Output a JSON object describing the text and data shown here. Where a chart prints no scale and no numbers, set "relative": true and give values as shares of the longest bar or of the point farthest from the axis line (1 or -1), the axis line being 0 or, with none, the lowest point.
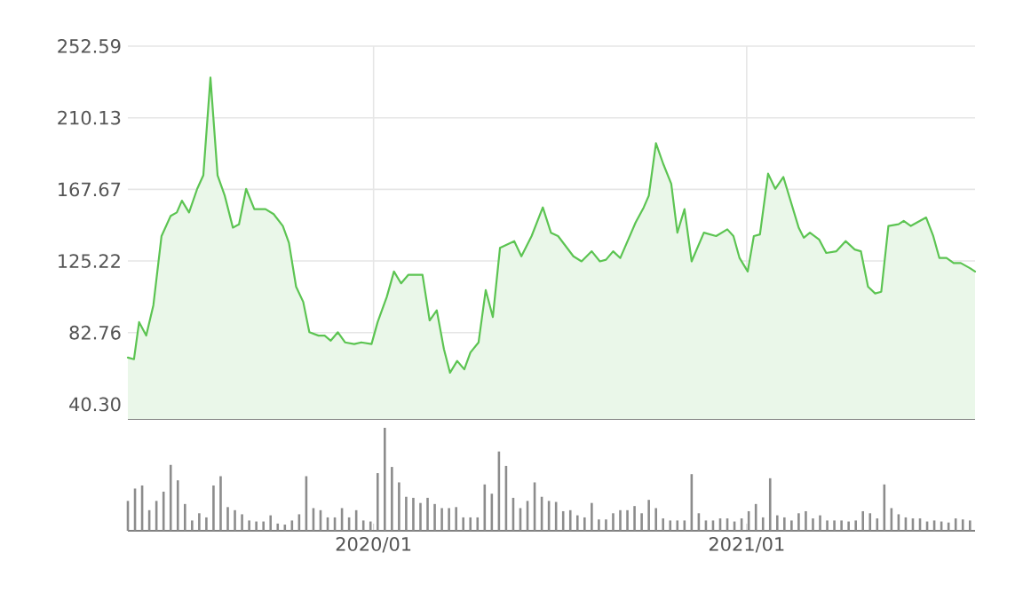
{
  "chart_data": [
    {
      "type": "area",
      "color": "#5cc452",
      "grid": true,
      "tick_labels": "y",
      "x": [
        "2019-05-05",
        "2019-05-11",
        "2019-05-16",
        "2019-05-23",
        "2019-05-30",
        "2019-06-07",
        "2019-06-16",
        "2019-06-22",
        "2019-06-27",
        "2019-07-04",
        "2019-07-12",
        "2019-07-18",
        "2019-07-25",
        "2019-08-01",
        "2019-08-08",
        "2019-08-16",
        "2019-08-22",
        "2019-08-29",
        "2019-09-06",
        "2019-09-17",
        "2019-09-25",
        "2019-10-04",
        "2019-10-10",
        "2019-10-17",
        "2019-10-24",
        "2019-10-30",
        "2019-11-08",
        "2019-11-14",
        "2019-11-20",
        "2019-11-27",
        "2019-12-04",
        "2019-12-13",
        "2019-12-20",
        "2019-12-30",
        "2020-01-05",
        "2020-01-14",
        "2020-01-21",
        "2020-01-28",
        "2020-02-04",
        "2020-02-18",
        "2020-02-25",
        "2020-03-03",
        "2020-03-10",
        "2020-03-16",
        "2020-03-23",
        "2020-03-30",
        "2020-04-05",
        "2020-04-13",
        "2020-04-20",
        "2020-04-27",
        "2020-05-04",
        "2020-05-18",
        "2020-05-25",
        "2020-06-04",
        "2020-06-15",
        "2020-06-23",
        "2020-06-30",
        "2020-07-15",
        "2020-07-23",
        "2020-08-02",
        "2020-08-10",
        "2020-08-16",
        "2020-08-23",
        "2020-08-30",
        "2020-09-14",
        "2020-09-22",
        "2020-09-27",
        "2020-10-04",
        "2020-10-11",
        "2020-10-19",
        "2020-10-25",
        "2020-11-01",
        "2020-11-08",
        "2020-11-20",
        "2020-12-02",
        "2020-12-13",
        "2020-12-19",
        "2020-12-25",
        "2021-01-02",
        "2021-01-08",
        "2021-01-14",
        "2021-01-22",
        "2021-01-29",
        "2021-02-06",
        "2021-02-21",
        "2021-02-26",
        "2021-03-04",
        "2021-03-13",
        "2021-03-20",
        "2021-03-30",
        "2021-04-08",
        "2021-04-17",
        "2021-04-23",
        "2021-04-30",
        "2021-05-07",
        "2021-05-13",
        "2021-05-20",
        "2021-05-30",
        "2021-06-04",
        "2021-06-11",
        "2021-06-26",
        "2021-07-03",
        "2021-07-09",
        "2021-07-16",
        "2021-07-23",
        "2021-07-30",
        "2021-08-08",
        "2021-08-13"
      ],
      "values": [
        68,
        67,
        89,
        81,
        99,
        140,
        152,
        154,
        161,
        154,
        168,
        176,
        234,
        176,
        164,
        145,
        147,
        168,
        156,
        156,
        153,
        146,
        136,
        110,
        101,
        83,
        81,
        81,
        78,
        83,
        77,
        76,
        77,
        76,
        89,
        104,
        119,
        112,
        117,
        117,
        90,
        96,
        73,
        59,
        66,
        61,
        71,
        77,
        108,
        92,
        133,
        137,
        128,
        140,
        157,
        142,
        140,
        128,
        125,
        131,
        125,
        126,
        131,
        127,
        148,
        157,
        164,
        195,
        183,
        171,
        142,
        156,
        125,
        142,
        140,
        144,
        140,
        127,
        119,
        140,
        141,
        177,
        168,
        175,
        145,
        139,
        142,
        138,
        130,
        131,
        137,
        132,
        131,
        110,
        106,
        107,
        146,
        147,
        149,
        146,
        151,
        140,
        127,
        127,
        124,
        124,
        121,
        119
      ],
      "xlim": [
        "2019-05-05",
        "2021-08-13"
      ],
      "xticks": [
        {
          "value": "2020-01-01",
          "label": null
        },
        {
          "value": "2021-01-01",
          "label": null
        }
      ],
      "ylim": [
        31.6,
        252.59
      ],
      "yticks": [
        {
          "value": 40.3,
          "label": "40.30"
        },
        82.76,
        125.22,
        167.67,
        210.13,
        252.59
      ]
    },
    {
      "type": "bar",
      "color": "#8c8c8c",
      "relative": true,
      "tick_labels": "x",
      "x": [
        "2019-05-05",
        "2019-05-12",
        "2019-05-19",
        "2019-05-26",
        "2019-06-02",
        "2019-06-09",
        "2019-06-16",
        "2019-06-23",
        "2019-06-30",
        "2019-07-07",
        "2019-07-14",
        "2019-07-21",
        "2019-07-28",
        "2019-08-04",
        "2019-08-11",
        "2019-08-18",
        "2019-08-25",
        "2019-09-01",
        "2019-09-08",
        "2019-09-15",
        "2019-09-22",
        "2019-09-29",
        "2019-10-06",
        "2019-10-13",
        "2019-10-20",
        "2019-10-27",
        "2019-11-03",
        "2019-11-10",
        "2019-11-17",
        "2019-11-24",
        "2019-12-01",
        "2019-12-08",
        "2019-12-15",
        "2019-12-22",
        "2019-12-29",
        "2020-01-05",
        "2020-01-12",
        "2020-01-19",
        "2020-01-26",
        "2020-02-02",
        "2020-02-09",
        "2020-02-16",
        "2020-02-23",
        "2020-03-01",
        "2020-03-08",
        "2020-03-15",
        "2020-03-22",
        "2020-03-29",
        "2020-04-05",
        "2020-04-12",
        "2020-04-19",
        "2020-04-26",
        "2020-05-03",
        "2020-05-10",
        "2020-05-17",
        "2020-05-24",
        "2020-05-31",
        "2020-06-07",
        "2020-06-14",
        "2020-06-21",
        "2020-06-28",
        "2020-07-05",
        "2020-07-12",
        "2020-07-19",
        "2020-07-26",
        "2020-08-02",
        "2020-08-09",
        "2020-08-16",
        "2020-08-23",
        "2020-08-30",
        "2020-09-06",
        "2020-09-13",
        "2020-09-20",
        "2020-09-27",
        "2020-10-04",
        "2020-10-11",
        "2020-10-18",
        "2020-10-25",
        "2020-11-01",
        "2020-11-08",
        "2020-11-15",
        "2020-11-22",
        "2020-11-29",
        "2020-12-06",
        "2020-12-13",
        "2020-12-20",
        "2020-12-27",
        "2021-01-03",
        "2021-01-10",
        "2021-01-17",
        "2021-01-24",
        "2021-01-31",
        "2021-02-07",
        "2021-02-14",
        "2021-02-21",
        "2021-02-28",
        "2021-03-07",
        "2021-03-14",
        "2021-03-21",
        "2021-03-28",
        "2021-04-04",
        "2021-04-11",
        "2021-04-18",
        "2021-04-25",
        "2021-05-02",
        "2021-05-09",
        "2021-05-16",
        "2021-05-23",
        "2021-05-30",
        "2021-06-06",
        "2021-06-13",
        "2021-06-20",
        "2021-06-27",
        "2021-07-04",
        "2021-07-11",
        "2021-07-18",
        "2021-07-25",
        "2021-08-01",
        "2021-08-08"
      ],
      "values": [
        0.29,
        0.41,
        0.44,
        0.2,
        0.29,
        0.38,
        0.64,
        0.49,
        0.26,
        0.1,
        0.17,
        0.13,
        0.44,
        0.53,
        0.23,
        0.2,
        0.16,
        0.1,
        0.09,
        0.09,
        0.15,
        0.07,
        0.06,
        0.1,
        0.16,
        0.53,
        0.22,
        0.2,
        0.13,
        0.13,
        0.22,
        0.13,
        0.2,
        0.1,
        0.09,
        0.56,
        1,
        0.62,
        0.47,
        0.33,
        0.32,
        0.27,
        0.32,
        0.26,
        0.22,
        0.22,
        0.23,
        0.13,
        0.13,
        0.13,
        0.45,
        0.36,
        0.77,
        0.63,
        0.32,
        0.22,
        0.29,
        0.47,
        0.33,
        0.29,
        0.28,
        0.19,
        0.2,
        0.15,
        0.13,
        0.27,
        0.11,
        0.11,
        0.17,
        0.2,
        0.2,
        0.24,
        0.17,
        0.3,
        0.22,
        0.12,
        0.1,
        0.1,
        0.1,
        0.55,
        0.17,
        0.1,
        0.1,
        0.12,
        0.12,
        0.09,
        0.12,
        0.19,
        0.26,
        0.13,
        0.51,
        0.15,
        0.13,
        0.1,
        0.17,
        0.19,
        0.12,
        0.15,
        0.1,
        0.1,
        0.1,
        0.09,
        0.1,
        0.19,
        0.17,
        0.12,
        0.45,
        0.22,
        0.16,
        0.13,
        0.12,
        0.12,
        0.09,
        0.1,
        0.09,
        0.08,
        0.12,
        0.11,
        0.1
      ],
      "xlim": [
        "2019-05-05",
        "2021-08-13"
      ],
      "xticks": [
        {
          "value": "2020-01-01",
          "label": "2020/01"
        },
        {
          "value": "2021-01-01",
          "label": "2021/01"
        }
      ]
    }
  ]
}
